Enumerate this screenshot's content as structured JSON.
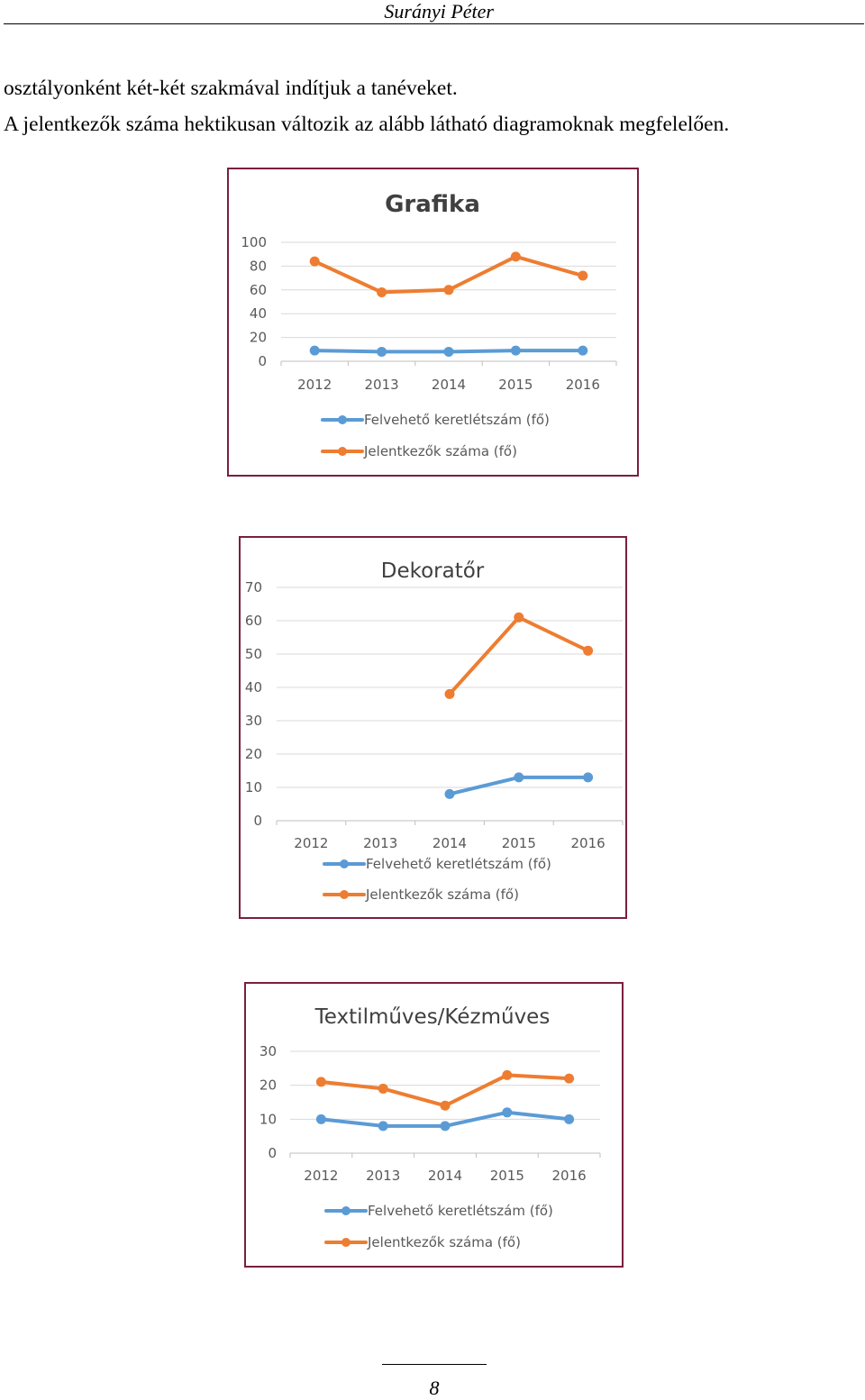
{
  "header": {
    "author": "Surányi Péter"
  },
  "body": {
    "line1": "osztályonként két-két szakmával indítjuk a tanéveket.",
    "line2": "A jelentkezők száma hektikusan változik az alább látható diagramoknak megfelelően."
  },
  "chart_data": [
    {
      "type": "line",
      "title": "Grafika",
      "categories": [
        "2012",
        "2013",
        "2014",
        "2015",
        "2016"
      ],
      "ylim": [
        0,
        100
      ],
      "yticks": [
        "0",
        "20",
        "40",
        "60",
        "80",
        "100"
      ],
      "grid": true,
      "legend_position": "bottom",
      "series": [
        {
          "name": "Felvehető keretlétszám (fő)",
          "color": "#5b9bd5",
          "values": [
            9,
            8,
            8,
            9,
            9
          ]
        },
        {
          "name": "Jelentkezők száma (fő)",
          "color": "#ed7d31",
          "values": [
            84,
            58,
            60,
            88,
            72
          ]
        }
      ]
    },
    {
      "type": "line",
      "title": "Dekoratőr",
      "categories": [
        "2012",
        "2013",
        "2014",
        "2015",
        "2016"
      ],
      "ylim": [
        0,
        70
      ],
      "yticks": [
        "0",
        "10",
        "20",
        "30",
        "40",
        "50",
        "60",
        "70"
      ],
      "grid": true,
      "legend_position": "bottom",
      "series": [
        {
          "name": "Felvehető keretlétszám (fő)",
          "color": "#5b9bd5",
          "values": [
            null,
            null,
            8,
            13,
            13
          ]
        },
        {
          "name": "Jelentkezők száma (fő)",
          "color": "#ed7d31",
          "values": [
            null,
            null,
            38,
            61,
            51
          ]
        }
      ]
    },
    {
      "type": "line",
      "title": "Textilműves/Kézműves",
      "categories": [
        "2012",
        "2013",
        "2014",
        "2015",
        "2016"
      ],
      "ylim": [
        0,
        30
      ],
      "yticks": [
        "0",
        "10",
        "20",
        "30"
      ],
      "grid": true,
      "legend_position": "bottom",
      "series": [
        {
          "name": "Felvehető keretlétszám (fő)",
          "color": "#5b9bd5",
          "values": [
            10,
            8,
            8,
            12,
            10
          ]
        },
        {
          "name": "Jelentkezők száma (fő)",
          "color": "#ed7d31",
          "values": [
            21,
            19,
            14,
            23,
            22
          ]
        }
      ]
    }
  ],
  "footer": {
    "page_number": "8"
  }
}
